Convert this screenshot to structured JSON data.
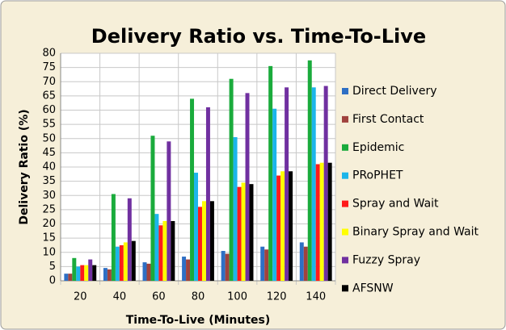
{
  "chart_data": {
    "type": "bar",
    "title": "Delivery Ratio vs. Time-To-Live",
    "x_label": "Time-To-Live (Minutes)",
    "y_label": "Delivery Ratio (%)",
    "categories": [
      "20",
      "40",
      "60",
      "80",
      "100",
      "120",
      "140"
    ],
    "series": [
      {
        "name": "Direct Delivery",
        "color": "#2e6fc4",
        "values": [
          2.5,
          4.5,
          6.5,
          8.5,
          10.5,
          12,
          13.5
        ]
      },
      {
        "name": "First Contact",
        "color": "#a0423d",
        "values": [
          2.5,
          4,
          6,
          7.5,
          9.5,
          11,
          12
        ]
      },
      {
        "name": "Epidemic",
        "color": "#1aab3c",
        "values": [
          8,
          30.5,
          51,
          64,
          71,
          75.5,
          77.5
        ]
      },
      {
        "name": "PRoPHET",
        "color": "#1cb5ea",
        "values": [
          5,
          12,
          23.5,
          38,
          50.5,
          60.5,
          68
        ]
      },
      {
        "name": "Spray and Wait",
        "color": "#ff1a1a",
        "values": [
          5.5,
          12.5,
          19.5,
          26,
          33,
          37,
          41
        ]
      },
      {
        "name": "Binary Spray and Wait",
        "color": "#ffff00",
        "values": [
          5.5,
          13.5,
          21,
          28,
          34.5,
          38.5,
          41.5
        ]
      },
      {
        "name": "Fuzzy Spray",
        "color": "#7030a0",
        "values": [
          7.5,
          29,
          49,
          61,
          66,
          68,
          68.5
        ]
      },
      {
        "name": "AFSNW",
        "color": "#000000",
        "values": [
          5.5,
          14,
          21,
          28,
          34,
          38.5,
          41.5
        ]
      }
    ],
    "ylim": [
      0,
      80
    ],
    "yticks": [
      0,
      5,
      10,
      15,
      20,
      25,
      30,
      35,
      40,
      45,
      50,
      55,
      60,
      65,
      70,
      75,
      80
    ],
    "grid": true,
    "legend": "right"
  }
}
